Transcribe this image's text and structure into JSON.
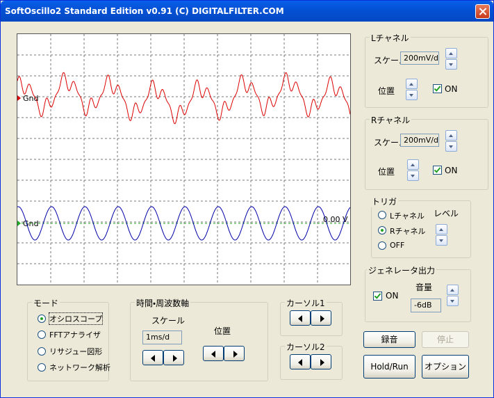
{
  "window": {
    "title": "SoftOscillo2 Standard Edition v0.91 (C) DIGITALFILTER.COM"
  },
  "scope": {
    "l_ground_label": "Gnd",
    "r_ground_label": "Gnd",
    "trigger_level": "0.00 V"
  },
  "left_channel": {
    "title": "Lチャネル",
    "scale_label": "スケール",
    "scale_value": "200mV/d",
    "position_label": "位置",
    "on_label": "ON"
  },
  "right_channel": {
    "title": "Rチャネル",
    "scale_label": "スケール",
    "scale_value": "200mV/d",
    "position_label": "位置",
    "on_label": "ON"
  },
  "trigger": {
    "title": "トリガ",
    "options": [
      "Lチャネル",
      "Rチャネル",
      "OFF"
    ],
    "level_label": "レベル"
  },
  "generator": {
    "title": "ジェネレータ出力",
    "on_label": "ON",
    "volume_label": "音量",
    "volume_value": "-6dB"
  },
  "buttons": {
    "record": "録音",
    "stop": "停止",
    "hold_run": "Hold/Run",
    "options": "オプション"
  },
  "mode": {
    "title": "モード",
    "options": [
      "オシロスコープ",
      "FFTアナライザ",
      "リサジュー図形",
      "ネットワーク解析"
    ]
  },
  "time_axis": {
    "title": "時間・周波数軸",
    "scale_label": "スケール",
    "scale_value": "1ms/d",
    "position_label": "位置"
  },
  "cursor1": {
    "title": "カーソル1"
  },
  "cursor2": {
    "title": "カーソル2"
  }
}
